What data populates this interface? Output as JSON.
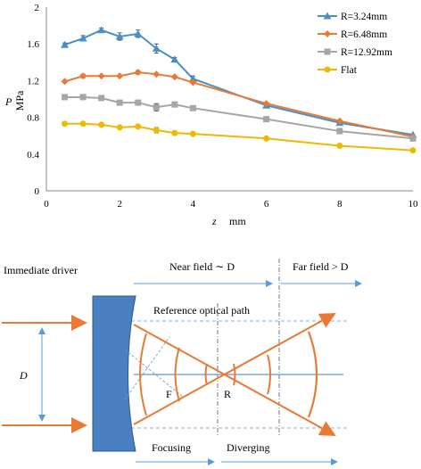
{
  "chart_data": {
    "type": "line",
    "xlabel": "z",
    "xunit": "mm",
    "ylabel": "P",
    "yunit": "MPa",
    "xlim": [
      0,
      10
    ],
    "ylim": [
      0,
      2
    ],
    "xticks": [
      "0",
      "2",
      "4",
      "6",
      "8",
      "10"
    ],
    "yticks": [
      "0",
      "0.4",
      "0.8",
      "1.2",
      "1.6",
      "2"
    ],
    "legend_position": "top-right",
    "grid": false,
    "series": [
      {
        "name": "R=3.24mm",
        "color": "#4a90c8",
        "marker": "triangle",
        "x": [
          0.5,
          1,
          1.5,
          2,
          2.5,
          3,
          3.5,
          4,
          6,
          8,
          10
        ],
        "y": [
          1.59,
          1.66,
          1.75,
          1.68,
          1.71,
          1.55,
          1.43,
          1.22,
          0.93,
          0.74,
          0.61
        ],
        "err": [
          0.02,
          0.03,
          0.02,
          0.04,
          0.04,
          0.05,
          0.02,
          0.03,
          0,
          0,
          0
        ]
      },
      {
        "name": "R=6.48mm",
        "color": "#e87a35",
        "marker": "diamond",
        "x": [
          0.5,
          1,
          1.5,
          2,
          2.5,
          3,
          3.5,
          4,
          6,
          8,
          10
        ],
        "y": [
          1.19,
          1.25,
          1.25,
          1.25,
          1.29,
          1.27,
          1.24,
          1.18,
          0.95,
          0.76,
          0.59
        ],
        "err": [
          0,
          0.02,
          0,
          0,
          0.02,
          0,
          0,
          0,
          0,
          0,
          0
        ]
      },
      {
        "name": "R=12.92mm",
        "color": "#a6a6a6",
        "marker": "square",
        "x": [
          0.5,
          1,
          1.5,
          2,
          2.5,
          3,
          3.5,
          4,
          6,
          8,
          10
        ],
        "y": [
          1.02,
          1.02,
          1.01,
          0.96,
          0.96,
          0.91,
          0.94,
          0.9,
          0.78,
          0.65,
          0.57
        ],
        "err": [
          0.02,
          0.02,
          0,
          0,
          0,
          0.04,
          0,
          0,
          0,
          0,
          0
        ]
      },
      {
        "name": "Flat",
        "color": "#f0b800",
        "marker": "circle",
        "x": [
          0.5,
          1,
          1.5,
          2,
          2.5,
          3,
          3.5,
          4,
          6,
          8,
          10
        ],
        "y": [
          0.73,
          0.73,
          0.72,
          0.69,
          0.7,
          0.66,
          0.63,
          0.62,
          0.57,
          0.49,
          0.44
        ],
        "err": [
          0.02,
          0,
          0,
          0,
          0,
          0.03,
          0.02,
          0,
          0,
          0,
          0
        ]
      }
    ]
  },
  "diagram": {
    "driver_label": "Immediate driver",
    "near_field_label": "Near field ∼ D",
    "far_field_label": "Far field > D",
    "reference_path_label": "Reference optical path",
    "d_label": "D",
    "focus_point_label": "F",
    "radius_label": "R",
    "focusing_label": "Focusing",
    "diverging_label": "Diverging",
    "colors": {
      "driver": "#4a7fc1",
      "wave": "#e87a35",
      "guide": "#5b9bd5"
    }
  }
}
